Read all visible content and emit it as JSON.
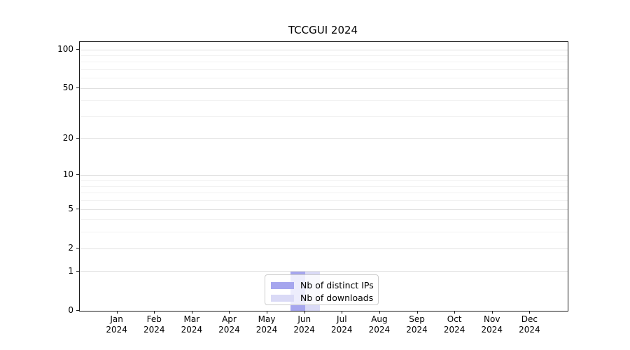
{
  "chart_data": {
    "type": "bar",
    "title": "TCCGUI 2024",
    "categories": [
      "Jan 2024",
      "Feb 2024",
      "Mar 2024",
      "Apr 2024",
      "May 2024",
      "Jun 2024",
      "Jul 2024",
      "Aug 2024",
      "Sep 2024",
      "Oct 2024",
      "Nov 2024",
      "Dec 2024"
    ],
    "series": [
      {
        "name": "Nb of distinct IPs",
        "color": "#a6a6ee",
        "values": [
          0,
          0,
          0,
          0,
          0,
          1,
          0,
          0,
          0,
          0,
          0,
          0
        ]
      },
      {
        "name": "Nb of downloads",
        "color": "#dadaf6",
        "values": [
          0,
          0,
          0,
          0,
          0,
          1,
          0,
          0,
          0,
          0,
          0,
          0
        ]
      }
    ],
    "xlabel": "",
    "ylabel": "",
    "y_scale": "log10(1+y)",
    "y_ticks": [
      0,
      1,
      2,
      5,
      10,
      20,
      50,
      100
    ],
    "y_minor_ticks": [
      3,
      4,
      6,
      7,
      8,
      9,
      30,
      40,
      60,
      70,
      80,
      90
    ],
    "ylim": [
      0,
      115
    ],
    "grid": true,
    "legend_position": "lower center",
    "colors": {
      "grid_major": "#e0e0e0",
      "grid_minor": "#f2f2f2",
      "axis": "#1a1a1a",
      "text": "#000000"
    }
  }
}
